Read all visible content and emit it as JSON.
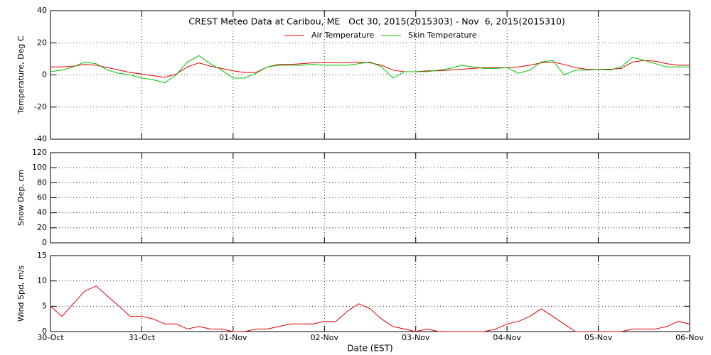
{
  "chart_data": [
    {
      "type": "line",
      "title": "CREST Meteo Data at Caribou, ME   Oct 30, 2015(2015303) - Nov  6, 2015(2015310)",
      "ylabel": "Temperature, Deg C",
      "ylim": [
        -40,
        40
      ],
      "yticks": [
        -40,
        -20,
        0,
        20,
        40
      ],
      "grid": true,
      "x": [
        0,
        0.125,
        0.25,
        0.375,
        0.5,
        0.625,
        0.75,
        0.875,
        1,
        1.125,
        1.25,
        1.375,
        1.5,
        1.625,
        1.75,
        1.875,
        2,
        2.125,
        2.25,
        2.375,
        2.5,
        2.625,
        2.75,
        2.875,
        3,
        3.125,
        3.25,
        3.375,
        3.5,
        3.625,
        3.75,
        3.875,
        4,
        4.125,
        4.25,
        4.375,
        4.5,
        4.625,
        4.75,
        4.875,
        5,
        5.125,
        5.25,
        5.375,
        5.5,
        5.625,
        5.75,
        5.875,
        6,
        6.125,
        6.25,
        6.375,
        6.5,
        6.625,
        6.75,
        6.875,
        7
      ],
      "series": [
        {
          "name": "Air Temperature",
          "color": "#e00000",
          "values": [
            5,
            5,
            5.5,
            6.5,
            6,
            4.5,
            3,
            1.5,
            0.5,
            -0.5,
            -1.5,
            0.5,
            5,
            7.5,
            5.5,
            4,
            2.5,
            1.5,
            1.5,
            5,
            6.5,
            6.5,
            7,
            7.5,
            7.5,
            7.5,
            7.5,
            8,
            7.5,
            6,
            3,
            2,
            2,
            2.5,
            2.5,
            3,
            3.5,
            4,
            4.5,
            4.5,
            4.5,
            5,
            6,
            7.5,
            8,
            6.5,
            4.5,
            3.5,
            3.5,
            3.5,
            4,
            8,
            9,
            8.5,
            7,
            6,
            6
          ]
        },
        {
          "name": "Skin Temperature",
          "color": "#00c000",
          "values": [
            2,
            3,
            5,
            8,
            7,
            3,
            1,
            0,
            -2,
            -3,
            -5,
            0,
            8,
            12,
            7,
            3,
            -2,
            -2,
            1,
            5,
            6,
            6,
            6,
            6.5,
            6,
            6,
            6,
            7,
            8,
            5,
            -2,
            2,
            2,
            2,
            3,
            4,
            6,
            5,
            4,
            4,
            4.5,
            1,
            3,
            8,
            9,
            0,
            3,
            3,
            3.5,
            3,
            5,
            11,
            9,
            7,
            5,
            5,
            5
          ]
        }
      ]
    },
    {
      "type": "line",
      "ylabel": "Snow Dep, cm",
      "ylim": [
        0,
        120
      ],
      "yticks": [
        0,
        20,
        40,
        60,
        80,
        100,
        120
      ],
      "grid": true,
      "series": []
    },
    {
      "type": "line",
      "ylabel": "Wind Spd, m/s",
      "xlabel": "Date (EST)",
      "xlim": [
        0,
        7
      ],
      "xticks": [
        {
          "value": 0,
          "label": "30-Oct"
        },
        {
          "value": 1,
          "label": "31-Oct"
        },
        {
          "value": 2,
          "label": "01-Nov"
        },
        {
          "value": 3,
          "label": "02-Nov"
        },
        {
          "value": 4,
          "label": "03-Nov"
        },
        {
          "value": 5,
          "label": "04-Nov"
        },
        {
          "value": 6,
          "label": "05-Nov"
        },
        {
          "value": 7,
          "label": "06-Nov"
        }
      ],
      "ylim": [
        0,
        15
      ],
      "yticks": [
        0,
        5,
        10,
        15
      ],
      "grid": true,
      "x": [
        0,
        0.125,
        0.25,
        0.375,
        0.5,
        0.625,
        0.75,
        0.875,
        1,
        1.125,
        1.25,
        1.375,
        1.5,
        1.625,
        1.75,
        1.875,
        2,
        2.125,
        2.25,
        2.375,
        2.5,
        2.625,
        2.75,
        2.875,
        3,
        3.125,
        3.25,
        3.375,
        3.5,
        3.625,
        3.75,
        3.875,
        4,
        4.125,
        4.25,
        4.375,
        4.5,
        4.625,
        4.75,
        4.875,
        5,
        5.125,
        5.25,
        5.375,
        5.5,
        5.625,
        5.75,
        5.875,
        6,
        6.125,
        6.25,
        6.375,
        6.5,
        6.625,
        6.75,
        6.875,
        7
      ],
      "series": [
        {
          "name": "Wind Speed",
          "color": "#e00000",
          "values": [
            5,
            3,
            5.5,
            8,
            9,
            7,
            5,
            3,
            3,
            2.5,
            1.5,
            1.5,
            0.5,
            1,
            0.5,
            0.5,
            0,
            0,
            0.5,
            0.5,
            1,
            1.5,
            1.5,
            1.5,
            2,
            2,
            4,
            5.5,
            4.5,
            2.5,
            1,
            0.5,
            0,
            0.5,
            0,
            0,
            0,
            0,
            0,
            0.5,
            1.5,
            2,
            3,
            4.5,
            3,
            1.5,
            0,
            0,
            0,
            0,
            0,
            0.5,
            0.5,
            0.5,
            1,
            2,
            1.5
          ]
        }
      ]
    }
  ]
}
